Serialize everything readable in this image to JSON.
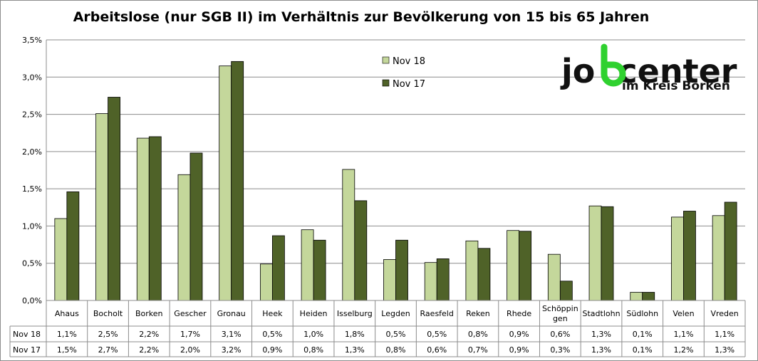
{
  "chart_data": {
    "type": "bar",
    "title": "Arbeitslose (nur SGB II) im Verhältnis zur Bevölkerung von 15 bis 65 Jahren",
    "xlabel": "",
    "ylabel": "",
    "ylim": [
      0,
      3.5
    ],
    "yticks": [
      "0,0%",
      "0,5%",
      "1,0%",
      "1,5%",
      "2,0%",
      "2,5%",
      "3,0%",
      "3,5%"
    ],
    "grid": true,
    "legend_position": "top-right",
    "categories": [
      "Ahaus",
      "Bocholt",
      "Borken",
      "Gescher",
      "Gronau",
      "Heek",
      "Heiden",
      "Isselburg",
      "Legden",
      "Raesfeld",
      "Reken",
      "Rhede",
      "Schöppin gen",
      "Stadtlohn",
      "Südlohn",
      "Velen",
      "Vreden"
    ],
    "category_lines": [
      [
        "Ahaus"
      ],
      [
        "Bocholt"
      ],
      [
        "Borken"
      ],
      [
        "Gescher"
      ],
      [
        "Gronau"
      ],
      [
        "Heek"
      ],
      [
        "Heiden"
      ],
      [
        "Isselburg"
      ],
      [
        "Legden"
      ],
      [
        "Raesfeld"
      ],
      [
        "Reken"
      ],
      [
        "Rhede"
      ],
      [
        "Schöppin",
        "gen"
      ],
      [
        "Stadtlohn"
      ],
      [
        "Südlohn"
      ],
      [
        "Velen"
      ],
      [
        "Vreden"
      ]
    ],
    "series": [
      {
        "name": "Nov 18",
        "color": "#c4d79b",
        "values": [
          1.1,
          2.51,
          2.18,
          1.69,
          3.15,
          0.49,
          0.95,
          1.76,
          0.55,
          0.51,
          0.8,
          0.94,
          0.62,
          1.27,
          0.11,
          1.12,
          1.14
        ],
        "labels": [
          "1,1%",
          "2,5%",
          "2,2%",
          "1,7%",
          "3,1%",
          "0,5%",
          "1,0%",
          "1,8%",
          "0,5%",
          "0,5%",
          "0,8%",
          "0,9%",
          "0,6%",
          "1,3%",
          "0,1%",
          "1,1%",
          "1,1%"
        ]
      },
      {
        "name": "Nov 17",
        "color": "#4f6228",
        "values": [
          1.46,
          2.73,
          2.2,
          1.98,
          3.21,
          0.87,
          0.81,
          1.34,
          0.81,
          0.56,
          0.7,
          0.93,
          0.26,
          1.26,
          0.11,
          1.2,
          1.32
        ],
        "labels": [
          "1,5%",
          "2,7%",
          "2,2%",
          "2,0%",
          "3,2%",
          "0,9%",
          "0,8%",
          "1,3%",
          "0,8%",
          "0,6%",
          "0,7%",
          "0,9%",
          "0,3%",
          "1,3%",
          "0,1%",
          "1,2%",
          "1,3%"
        ]
      }
    ]
  },
  "logo": {
    "word_left": "jo",
    "word_right": "center",
    "subline": "im Kreis Borken",
    "accent_color": "#2fd12f"
  }
}
